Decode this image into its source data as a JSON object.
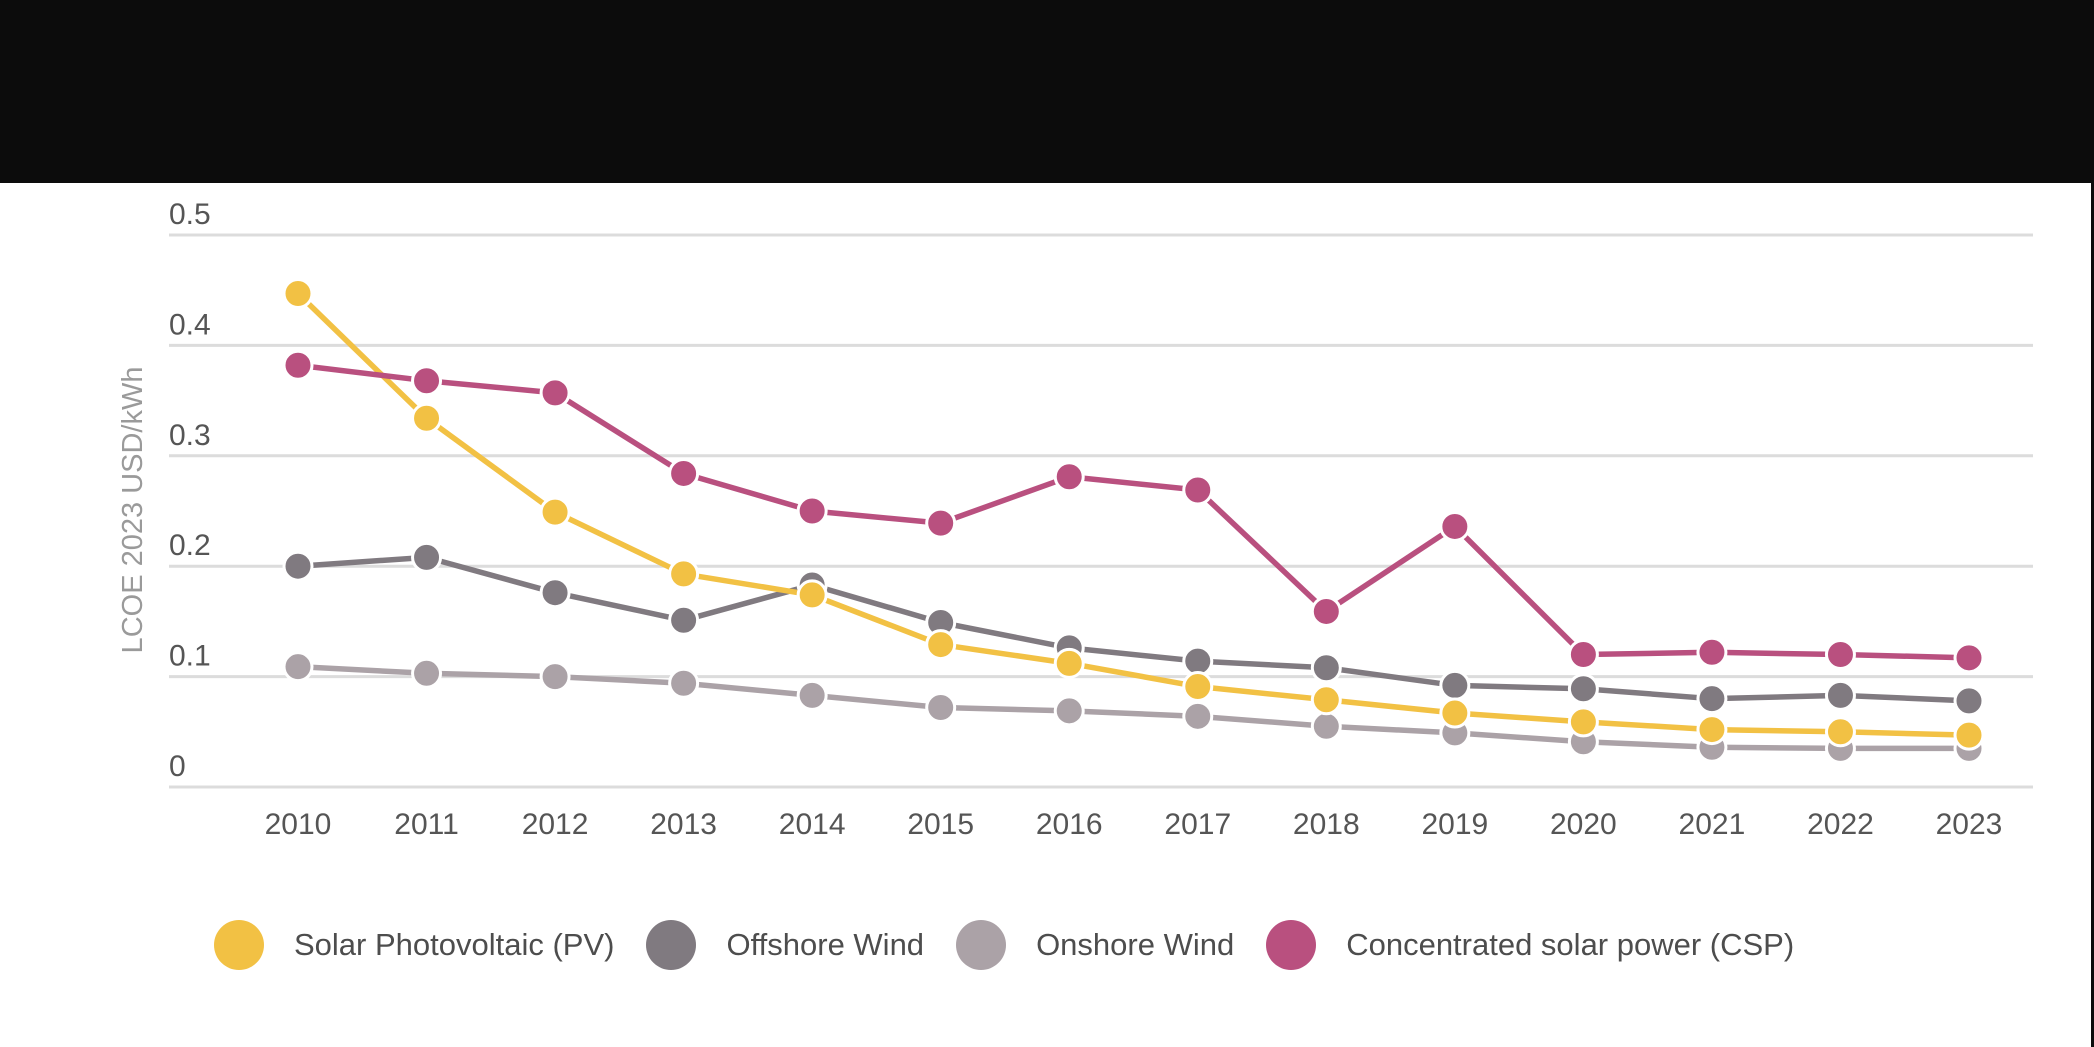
{
  "chart_data": {
    "type": "line",
    "title": "",
    "xlabel": "",
    "ylabel": "LCOE 2023 USD/kWh",
    "ylim": [
      0,
      0.5
    ],
    "yticks": [
      "0",
      "0.1",
      "0.2",
      "0.3",
      "0.4",
      "0.5"
    ],
    "ytick_values": [
      0,
      0.1,
      0.2,
      0.3,
      0.4,
      0.5
    ],
    "grid": true,
    "legend_position": "bottom",
    "x": [
      "2010",
      "2011",
      "2012",
      "2013",
      "2014",
      "2015",
      "2016",
      "2017",
      "2018",
      "2019",
      "2020",
      "2021",
      "2022",
      "2023"
    ],
    "series": [
      {
        "name": "Solar Photovoltaic (PV)",
        "color": "#F2C144",
        "values": [
          0.447,
          0.334,
          0.249,
          0.193,
          0.174,
          0.129,
          0.112,
          0.091,
          0.079,
          0.067,
          0.059,
          0.052,
          0.05,
          0.047
        ]
      },
      {
        "name": "Offshore Wind",
        "color": "#807A80",
        "values": [
          0.2,
          0.208,
          0.176,
          0.151,
          0.183,
          0.149,
          0.126,
          0.114,
          0.108,
          0.092,
          0.089,
          0.08,
          0.083,
          0.078
        ]
      },
      {
        "name": "Onshore Wind",
        "color": "#ABA2A7",
        "values": [
          0.109,
          0.103,
          0.1,
          0.094,
          0.083,
          0.072,
          0.069,
          0.064,
          0.055,
          0.049,
          0.041,
          0.036,
          0.035,
          0.035
        ]
      },
      {
        "name": "Concentrated solar power (CSP)",
        "color": "#B9507F",
        "values": [
          0.382,
          0.368,
          0.357,
          0.284,
          0.25,
          0.239,
          0.281,
          0.269,
          0.159,
          0.236,
          0.12,
          0.122,
          0.12,
          0.117
        ]
      }
    ]
  }
}
